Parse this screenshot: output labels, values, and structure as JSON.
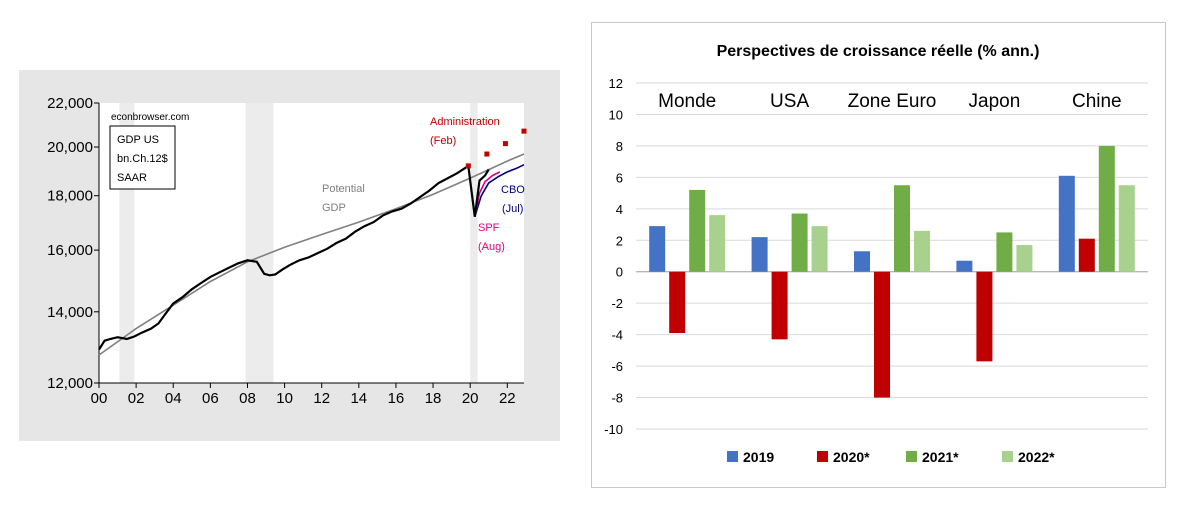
{
  "chart_data": [
    {
      "type": "line",
      "title": "",
      "source_label": "econbrowser.com",
      "legend_box": [
        "GDP US",
        "bn.Ch.12$",
        "SAAR"
      ],
      "y_scale": "log",
      "ylim": [
        12000,
        22000
      ],
      "yticks": [
        12000,
        14000,
        16000,
        18000,
        20000,
        22000
      ],
      "ytick_labels": [
        "12,000",
        "14,000",
        "16,000",
        "18,000",
        "20,000",
        "22,000"
      ],
      "xlim": [
        2000.0,
        2022.9
      ],
      "xticks": [
        2000,
        2002,
        2004,
        2006,
        2008,
        2010,
        2012,
        2014,
        2016,
        2018,
        2020,
        2022
      ],
      "xtick_labels": [
        "00",
        "02",
        "04",
        "06",
        "08",
        "10",
        "12",
        "14",
        "16",
        "18",
        "20",
        "22"
      ],
      "recessions": [
        [
          2001.1,
          2001.9
        ],
        [
          2007.9,
          2009.4
        ],
        [
          2020.0,
          2020.4
        ]
      ],
      "annotations": {
        "potential": [
          "Potential",
          "GDP"
        ],
        "administration": [
          "Administration",
          "(Feb)"
        ],
        "cbo": [
          "CBO",
          "(Jul)"
        ],
        "spf": [
          "SPF",
          "(Aug)"
        ]
      },
      "colors": {
        "gdp": "#000000",
        "potential": "#808080",
        "administration": "#c00000",
        "cbo": "#000080",
        "spf": "#e0007f"
      },
      "series": [
        {
          "name": "GDP US",
          "x": [
            2000.0,
            2000.3,
            2000.6,
            2001.0,
            2001.5,
            2001.9,
            2002.3,
            2002.8,
            2003.2,
            2003.6,
            2004.0,
            2004.5,
            2005.0,
            2005.5,
            2006.0,
            2006.5,
            2007.0,
            2007.5,
            2008.0,
            2008.5,
            2008.9,
            2009.2,
            2009.5,
            2009.9,
            2010.3,
            2010.8,
            2011.3,
            2011.8,
            2012.3,
            2012.8,
            2013.3,
            2013.8,
            2014.3,
            2014.8,
            2015.3,
            2015.8,
            2016.3,
            2016.8,
            2017.3,
            2017.8,
            2018.3,
            2018.8,
            2019.3,
            2019.9,
            2020.25,
            2020.5,
            2020.8,
            2021.0
          ],
          "values": [
            12900,
            13150,
            13200,
            13250,
            13200,
            13270,
            13380,
            13500,
            13650,
            13950,
            14250,
            14450,
            14700,
            14900,
            15100,
            15250,
            15400,
            15550,
            15650,
            15600,
            15200,
            15150,
            15180,
            15350,
            15500,
            15650,
            15750,
            15900,
            16050,
            16250,
            16400,
            16650,
            16850,
            17000,
            17250,
            17400,
            17500,
            17700,
            17950,
            18200,
            18500,
            18700,
            18900,
            19200,
            17200,
            18600,
            18800,
            19050
          ]
        },
        {
          "name": "Potential GDP",
          "x": [
            2000.0,
            2002.0,
            2004.0,
            2006.0,
            2008.0,
            2010.0,
            2012.0,
            2014.0,
            2016.0,
            2018.0,
            2020.0,
            2022.0,
            2022.9
          ],
          "values": [
            12750,
            13500,
            14200,
            14950,
            15600,
            16100,
            16550,
            17000,
            17500,
            18050,
            18700,
            19400,
            19700
          ]
        },
        {
          "name": "CBO (Jul)",
          "x": [
            2020.25,
            2020.6,
            2021.0,
            2021.5,
            2022.0,
            2022.5,
            2022.9
          ],
          "values": [
            17200,
            18000,
            18500,
            18750,
            18950,
            19100,
            19250
          ]
        },
        {
          "name": "SPF (Aug)",
          "x": [
            2020.25,
            2020.5,
            2020.8,
            2021.2,
            2021.6
          ],
          "values": [
            17200,
            18100,
            18550,
            18800,
            18950
          ]
        },
        {
          "name": "Administration (Feb)",
          "x": [
            2019.9,
            2020.9,
            2021.9,
            2022.9
          ],
          "values": [
            19200,
            19700,
            20150,
            20700
          ]
        }
      ]
    },
    {
      "type": "bar",
      "title": "Perspectives de croissance réelle (% ann.)",
      "categories": [
        "Monde",
        "USA",
        "Zone Euro",
        "Japon",
        "Chine"
      ],
      "ylim": [
        -10,
        12
      ],
      "yticks": [
        -10,
        -8,
        -6,
        -4,
        -2,
        0,
        2,
        4,
        6,
        8,
        10,
        12
      ],
      "legend_position": "bottom",
      "series": [
        {
          "name": "2019",
          "color": "#4472c4",
          "values": [
            2.9,
            2.2,
            1.3,
            0.7,
            6.1
          ]
        },
        {
          "name": "2020*",
          "color": "#c00000",
          "values": [
            -3.9,
            -4.3,
            -8.0,
            -5.7,
            2.1
          ]
        },
        {
          "name": "2021*",
          "color": "#70ad47",
          "values": [
            5.2,
            3.7,
            5.5,
            2.5,
            8.0
          ]
        },
        {
          "name": "2022*",
          "color": "#a9d18e",
          "values": [
            3.6,
            2.9,
            2.6,
            1.7,
            5.5
          ]
        }
      ]
    }
  ]
}
